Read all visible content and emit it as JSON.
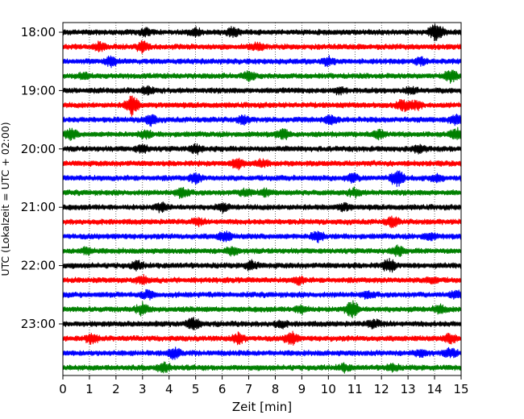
{
  "chart_data": {
    "type": "line",
    "title": "",
    "xlabel": "Zeit  [min]",
    "ylabel": "UTC (Lokalzeit = UTC + 02:00)",
    "xlim": [
      0,
      15
    ],
    "x_ticks": [
      "0",
      "1",
      "2",
      "3",
      "4",
      "5",
      "6",
      "7",
      "8",
      "9",
      "10",
      "11",
      "12",
      "13",
      "14",
      "15"
    ],
    "y_tick_labels": [
      "18:00",
      "19:00",
      "20:00",
      "21:00",
      "22:00",
      "23:00"
    ],
    "grid": "vertical dotted",
    "trace_interval_min": 15,
    "trace_start": "18:00",
    "colors": [
      "#000000",
      "#ff0000",
      "#0000ff",
      "#008000"
    ],
    "traces": [
      {
        "start": "18:00",
        "color": "#000000",
        "events": [
          [
            5.0,
            0.6
          ],
          [
            6.4,
            0.6
          ],
          [
            14.0,
            0.9
          ],
          [
            14.2,
            0.6
          ],
          [
            3.1,
            0.5
          ]
        ]
      },
      {
        "start": "18:15",
        "color": "#ff0000",
        "events": [
          [
            1.4,
            0.7
          ],
          [
            3.0,
            0.8
          ],
          [
            7.3,
            0.5
          ]
        ]
      },
      {
        "start": "18:30",
        "color": "#0000ff",
        "events": [
          [
            1.8,
            0.7
          ],
          [
            10.0,
            0.6
          ],
          [
            13.5,
            0.5
          ]
        ]
      },
      {
        "start": "18:45",
        "color": "#008000",
        "events": [
          [
            0.8,
            0.5
          ],
          [
            7.0,
            0.6
          ],
          [
            14.6,
            1.0
          ]
        ]
      },
      {
        "start": "19:00",
        "color": "#000000",
        "events": [
          [
            3.2,
            0.6
          ],
          [
            10.4,
            0.5
          ],
          [
            13.1,
            0.5
          ]
        ]
      },
      {
        "start": "19:15",
        "color": "#ff0000",
        "events": [
          [
            2.6,
            1.6
          ],
          [
            12.8,
            0.9
          ],
          [
            13.3,
            0.6
          ]
        ]
      },
      {
        "start": "19:30",
        "color": "#0000ff",
        "events": [
          [
            3.3,
            0.8
          ],
          [
            6.8,
            0.6
          ],
          [
            10.1,
            0.7
          ],
          [
            14.8,
            0.7
          ]
        ]
      },
      {
        "start": "19:45",
        "color": "#008000",
        "events": [
          [
            0.3,
            0.8
          ],
          [
            3.1,
            0.6
          ],
          [
            8.3,
            0.8
          ],
          [
            11.9,
            0.6
          ],
          [
            14.8,
            0.9
          ]
        ]
      },
      {
        "start": "20:00",
        "color": "#000000",
        "events": [
          [
            3.0,
            0.6
          ],
          [
            5.0,
            0.7
          ],
          [
            13.4,
            0.6
          ]
        ]
      },
      {
        "start": "20:15",
        "color": "#ff0000",
        "events": [
          [
            6.6,
            0.9
          ],
          [
            7.5,
            0.5
          ]
        ]
      },
      {
        "start": "20:30",
        "color": "#0000ff",
        "events": [
          [
            5.0,
            0.7
          ],
          [
            10.9,
            0.6
          ],
          [
            12.6,
            1.3
          ],
          [
            14.1,
            0.5
          ]
        ]
      },
      {
        "start": "20:45",
        "color": "#008000",
        "events": [
          [
            4.5,
            0.8
          ],
          [
            6.9,
            0.6
          ],
          [
            7.6,
            0.5
          ],
          [
            11.0,
            0.6
          ]
        ]
      },
      {
        "start": "21:00",
        "color": "#000000",
        "events": [
          [
            3.7,
            0.6
          ],
          [
            6.0,
            0.6
          ],
          [
            10.6,
            0.5
          ]
        ]
      },
      {
        "start": "21:15",
        "color": "#ff0000",
        "events": [
          [
            12.4,
            0.8
          ],
          [
            5.1,
            0.4
          ]
        ]
      },
      {
        "start": "21:30",
        "color": "#0000ff",
        "events": [
          [
            6.1,
            0.8
          ],
          [
            9.6,
            0.9
          ],
          [
            13.8,
            0.5
          ]
        ]
      },
      {
        "start": "21:45",
        "color": "#008000",
        "events": [
          [
            0.9,
            0.5
          ],
          [
            6.4,
            0.6
          ],
          [
            12.6,
            0.7
          ]
        ]
      },
      {
        "start": "22:00",
        "color": "#000000",
        "events": [
          [
            2.8,
            0.6
          ],
          [
            7.1,
            0.7
          ],
          [
            12.3,
            1.0
          ]
        ]
      },
      {
        "start": "22:15",
        "color": "#ff0000",
        "events": [
          [
            3.0,
            0.6
          ],
          [
            8.9,
            0.5
          ],
          [
            13.9,
            0.5
          ]
        ]
      },
      {
        "start": "22:30",
        "color": "#0000ff",
        "events": [
          [
            3.2,
            0.6
          ],
          [
            11.5,
            0.5
          ],
          [
            14.8,
            0.5
          ]
        ]
      },
      {
        "start": "22:45",
        "color": "#008000",
        "events": [
          [
            3.0,
            0.9
          ],
          [
            9.0,
            0.6
          ],
          [
            10.9,
            1.3
          ],
          [
            14.2,
            0.6
          ]
        ]
      },
      {
        "start": "23:00",
        "color": "#000000",
        "events": [
          [
            4.9,
            0.9
          ],
          [
            8.2,
            0.5
          ],
          [
            11.7,
            0.6
          ]
        ]
      },
      {
        "start": "23:15",
        "color": "#ff0000",
        "events": [
          [
            1.1,
            0.7
          ],
          [
            6.6,
            0.8
          ],
          [
            8.6,
            1.0
          ],
          [
            14.6,
            0.7
          ]
        ]
      },
      {
        "start": "23:30",
        "color": "#0000ff",
        "events": [
          [
            4.2,
            0.8
          ],
          [
            13.5,
            0.5
          ],
          [
            14.6,
            0.7
          ]
        ]
      },
      {
        "start": "23:45",
        "color": "#008000",
        "events": [
          [
            3.8,
            0.8
          ],
          [
            10.6,
            0.5
          ],
          [
            12.4,
            0.5
          ]
        ]
      }
    ]
  }
}
